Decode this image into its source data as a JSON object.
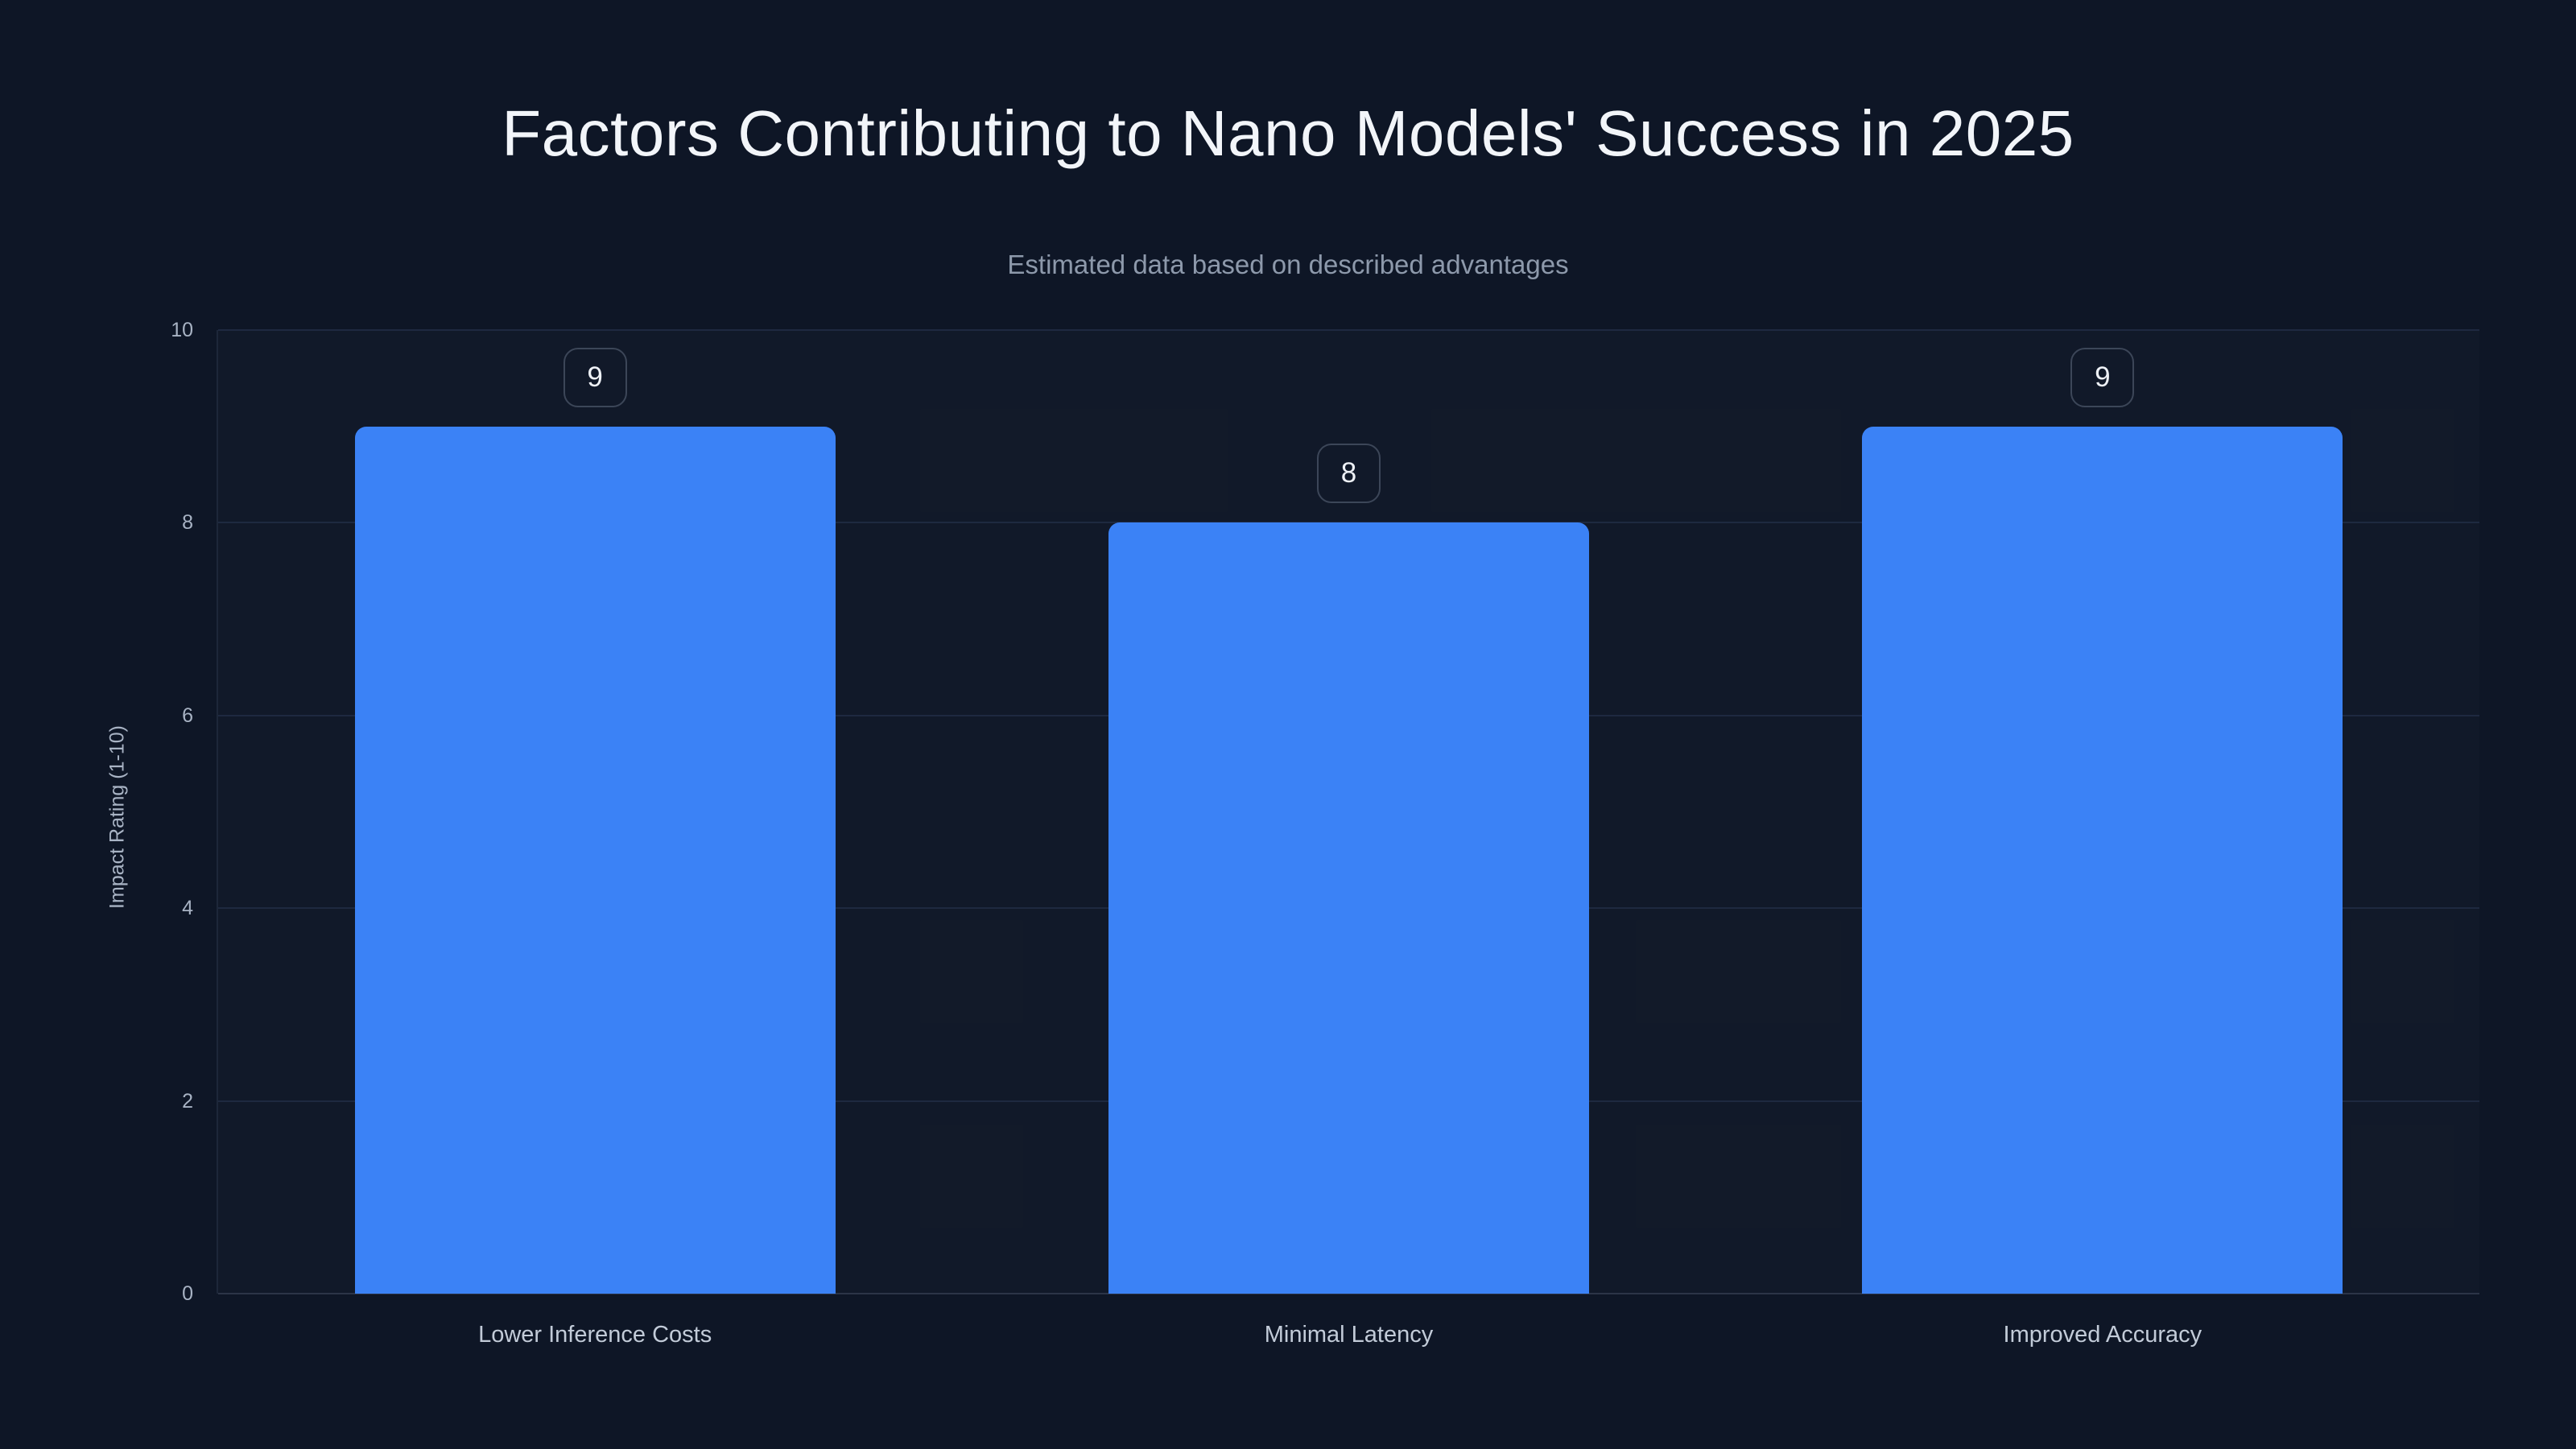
{
  "chart_data": {
    "type": "bar",
    "title": "Factors Contributing to Nano Models' Success in 2025",
    "subtitle": "Estimated data based on described advantages",
    "xlabel": "",
    "ylabel": "Impact Rating (1-10)",
    "categories": [
      "Lower Inference Costs",
      "Minimal Latency",
      "Improved Accuracy"
    ],
    "values": [
      9,
      8,
      9
    ],
    "value_labels": [
      "9",
      "8",
      "9"
    ],
    "ylim": [
      0,
      10
    ],
    "yticks": [
      0,
      2,
      4,
      6,
      8,
      10
    ],
    "grid": "horizontal-only",
    "legend_position": "none",
    "colors": {
      "bar": "#3b82f6",
      "background": "#0e1626",
      "title_text": "#f2f5f9",
      "subtitle_text": "#8d99ab",
      "axis_text": "#a8b3c4",
      "category_text": "#c2cbd8",
      "gridline": "#1e2940",
      "badge_border": "#3c4658",
      "badge_text": "#eef1f6"
    }
  }
}
